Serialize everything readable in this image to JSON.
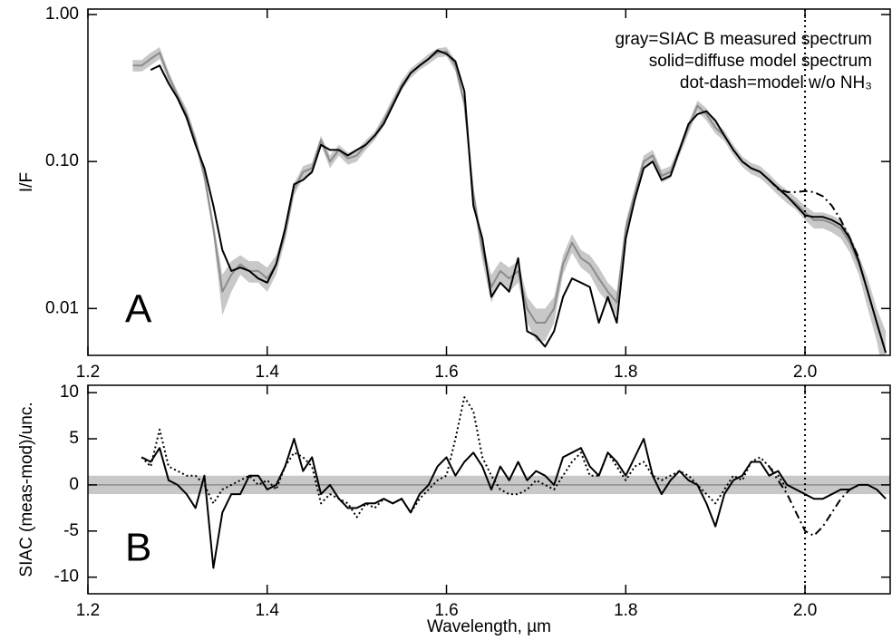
{
  "chart_data": [
    {
      "type": "line",
      "panel_label": "A",
      "ylabel": "I/F",
      "log_y": true,
      "legend": "upper right",
      "xlim": [
        1.2,
        2.095
      ],
      "xticks": [
        1.2,
        1.4,
        1.6,
        1.8,
        {
          "value": 2,
          "label": "2.0"
        }
      ],
      "ylim": [
        0.0048,
        1.09
      ],
      "yticks": [
        {
          "value": 1,
          "label": "1.00"
        },
        {
          "value": 0.1,
          "label": "0.10"
        },
        {
          "value": 0.01,
          "label": "0.01"
        }
      ],
      "vline": 2,
      "x": [
        1.25,
        1.26,
        1.27,
        1.28,
        1.29,
        1.3,
        1.31,
        1.32,
        1.33,
        1.34,
        1.35,
        1.36,
        1.37,
        1.38,
        1.39,
        1.4,
        1.41,
        1.42,
        1.43,
        1.44,
        1.45,
        1.46,
        1.47,
        1.48,
        1.49,
        1.5,
        1.51,
        1.52,
        1.53,
        1.54,
        1.55,
        1.56,
        1.57,
        1.58,
        1.59,
        1.6,
        1.61,
        1.62,
        1.63,
        1.64,
        1.65,
        1.66,
        1.67,
        1.68,
        1.69,
        1.7,
        1.71,
        1.72,
        1.73,
        1.74,
        1.75,
        1.76,
        1.77,
        1.78,
        1.79,
        1.8,
        1.81,
        1.82,
        1.83,
        1.84,
        1.85,
        1.86,
        1.87,
        1.88,
        1.89,
        1.9,
        1.91,
        1.92,
        1.93,
        1.94,
        1.95,
        1.96,
        1.97,
        1.98,
        1.99,
        2.0,
        2.01,
        2.02,
        2.03,
        2.04,
        2.05,
        2.06,
        2.07,
        2.08,
        2.09
      ],
      "series": [
        {
          "name": "gray=SIAC B measured spectrum",
          "color": "#8c8c8c",
          "error_color": "#c8c8c8",
          "style": "solid",
          "values": [
            0.45,
            0.45,
            0.5,
            0.55,
            0.38,
            0.28,
            0.21,
            0.14,
            0.08,
            0.035,
            0.013,
            0.017,
            0.02,
            0.018,
            0.018,
            0.016,
            0.02,
            0.032,
            0.065,
            0.085,
            0.09,
            0.14,
            0.1,
            0.12,
            0.105,
            0.11,
            0.13,
            0.15,
            0.19,
            0.25,
            0.33,
            0.4,
            0.45,
            0.5,
            0.55,
            0.56,
            0.45,
            0.25,
            0.06,
            0.025,
            0.014,
            0.018,
            0.016,
            0.018,
            0.01,
            0.008,
            0.008,
            0.01,
            0.02,
            0.028,
            0.022,
            0.02,
            0.016,
            0.013,
            0.011,
            0.035,
            0.06,
            0.1,
            0.11,
            0.08,
            0.085,
            0.12,
            0.17,
            0.24,
            0.21,
            0.17,
            0.15,
            0.12,
            0.1,
            0.09,
            0.085,
            0.075,
            0.065,
            0.058,
            0.052,
            0.045,
            0.04,
            0.04,
            0.038,
            0.035,
            0.028,
            0.02,
            0.013,
            0.008,
            0.005
          ],
          "errors": [
            0.04,
            0.04,
            0.05,
            0.05,
            0.03,
            0.02,
            0.02,
            0.01,
            0.008,
            0.004,
            0.004,
            0.004,
            0.003,
            0.003,
            0.003,
            0.003,
            0.003,
            0.003,
            0.006,
            0.008,
            0.008,
            0.01,
            0.01,
            0.01,
            0.01,
            0.01,
            0.01,
            0.01,
            0.015,
            0.02,
            0.025,
            0.03,
            0.03,
            0.04,
            0.04,
            0.04,
            0.04,
            0.02,
            0.008,
            0.004,
            0.003,
            0.003,
            0.003,
            0.003,
            0.002,
            0.002,
            0.002,
            0.002,
            0.003,
            0.004,
            0.003,
            0.003,
            0.003,
            0.002,
            0.002,
            0.004,
            0.006,
            0.01,
            0.01,
            0.008,
            0.008,
            0.01,
            0.015,
            0.02,
            0.02,
            0.015,
            0.012,
            0.01,
            0.008,
            0.008,
            0.008,
            0.007,
            0.006,
            0.006,
            0.005,
            0.005,
            0.005,
            0.005,
            0.005,
            0.005,
            0.004,
            0.003,
            0.003,
            0.002,
            0.002
          ]
        },
        {
          "name": "solid=diffuse model spectrum",
          "color": "#000000",
          "style": "solid",
          "values": [
            null,
            null,
            0.42,
            0.45,
            0.34,
            0.27,
            0.2,
            0.13,
            0.09,
            0.05,
            0.025,
            0.018,
            0.019,
            0.018,
            0.016,
            0.015,
            0.02,
            0.035,
            0.07,
            0.075,
            0.085,
            0.13,
            0.12,
            0.12,
            0.11,
            0.12,
            0.13,
            0.15,
            0.18,
            0.24,
            0.32,
            0.4,
            0.45,
            0.5,
            0.57,
            0.54,
            0.48,
            0.3,
            0.05,
            0.03,
            0.012,
            0.015,
            0.013,
            0.022,
            0.007,
            0.0065,
            0.0055,
            0.007,
            0.012,
            0.016,
            0.015,
            0.014,
            0.008,
            0.012,
            0.008,
            0.03,
            0.055,
            0.09,
            0.1,
            0.075,
            0.08,
            0.12,
            0.18,
            0.21,
            0.22,
            0.19,
            0.15,
            0.12,
            0.1,
            0.09,
            0.085,
            0.075,
            0.066,
            0.058,
            0.05,
            0.043,
            0.042,
            0.042,
            0.04,
            0.037,
            0.03,
            0.021,
            0.013,
            0.008,
            0.005
          ]
        },
        {
          "name": "dot-dash=model w/o NH₃",
          "color": "#000000",
          "style": "dashdot",
          "x": [
            1.96,
            1.97,
            1.98,
            1.99,
            2.0,
            2.01,
            2.02,
            2.03,
            2.04,
            2.05,
            2.06
          ],
          "values": [
            0.075,
            0.065,
            0.062,
            0.062,
            0.063,
            0.062,
            0.058,
            0.05,
            0.04,
            0.03,
            0.022
          ]
        }
      ]
    },
    {
      "type": "line",
      "panel_label": "B",
      "ylabel": "SIAC (meas-mod)/unc.",
      "xlabel": "Wavelength, µm",
      "log_y": false,
      "xlim": [
        1.2,
        2.095
      ],
      "xticks": [
        1.2,
        1.4,
        1.6,
        1.8,
        {
          "value": 2,
          "label": "2.0"
        }
      ],
      "ylim": [
        -11.8,
        10.8
      ],
      "yticks": [
        10,
        5,
        0,
        -5,
        -10
      ],
      "band": [
        -1,
        1
      ],
      "band_color": "#c8c8c8",
      "hline": 0,
      "vline": 2,
      "series": [
        {
          "color": "#000000",
          "style": "solid",
          "x": [
            1.26,
            1.27,
            1.28,
            1.29,
            1.3,
            1.31,
            1.32,
            1.33,
            1.34,
            1.35,
            1.36,
            1.37,
            1.38,
            1.39,
            1.4,
            1.41,
            1.42,
            1.43,
            1.44,
            1.45,
            1.46,
            1.47,
            1.48,
            1.49,
            1.5,
            1.51,
            1.52,
            1.53,
            1.54,
            1.55,
            1.56,
            1.57,
            1.58,
            1.59,
            1.6,
            1.61,
            1.62,
            1.63,
            1.64,
            1.65,
            1.66,
            1.67,
            1.68,
            1.69,
            1.7,
            1.71,
            1.72,
            1.73,
            1.74,
            1.75,
            1.76,
            1.77,
            1.78,
            1.79,
            1.8,
            1.81,
            1.82,
            1.83,
            1.84,
            1.85,
            1.86,
            1.87,
            1.88,
            1.89,
            1.9,
            1.91,
            1.92,
            1.93,
            1.94,
            1.95,
            1.96,
            1.97,
            1.98,
            1.99,
            2.0,
            2.01,
            2.02,
            2.03,
            2.04,
            2.05,
            2.06,
            2.07,
            2.08,
            2.09
          ],
          "values": [
            3,
            2.5,
            4,
            0.5,
            0,
            -1,
            -2.5,
            1,
            -9,
            -3,
            -1,
            -1,
            1,
            1,
            -0.5,
            0,
            2,
            5,
            1.5,
            3,
            -1,
            0,
            -1.5,
            -2.5,
            -2.5,
            -2,
            -2,
            -1.5,
            -2,
            -1.5,
            -3,
            -1,
            0,
            2,
            3,
            1,
            2.5,
            3.5,
            2,
            -0.5,
            2,
            0.5,
            2.5,
            0.5,
            1.5,
            1,
            0,
            3,
            3.5,
            4,
            2,
            1,
            3.5,
            2.5,
            1,
            3,
            5,
            1,
            -1,
            0.5,
            1.5,
            0.5,
            0,
            -2,
            -4.5,
            -1,
            0.5,
            1,
            2.5,
            2.5,
            1,
            1.5,
            0,
            -0.5,
            -1,
            -1.5,
            -1.5,
            -1,
            -0.5,
            -0.5,
            0,
            0,
            -0.5,
            -1.5
          ]
        },
        {
          "color": "#000000",
          "style": "dotted",
          "x": [
            1.26,
            1.27,
            1.28,
            1.29,
            1.3,
            1.31,
            1.32,
            1.33,
            1.34,
            1.35,
            1.36,
            1.37,
            1.38,
            1.39,
            1.4,
            1.41,
            1.42,
            1.43,
            1.44,
            1.45,
            1.46,
            1.47,
            1.48,
            1.49,
            1.5,
            1.51,
            1.52,
            1.53,
            1.54,
            1.55,
            1.56,
            1.57,
            1.58,
            1.59,
            1.6,
            1.61,
            1.62,
            1.63,
            1.64,
            1.65,
            1.66,
            1.67,
            1.68,
            1.69,
            1.7,
            1.71,
            1.72,
            1.73,
            1.74,
            1.75,
            1.76,
            1.77,
            1.78,
            1.79,
            1.8,
            1.81,
            1.82,
            1.83,
            1.84,
            1.85,
            1.86,
            1.87,
            1.88,
            1.89,
            1.9,
            1.91,
            1.92,
            1.93,
            1.94,
            1.95,
            1.96,
            1.97,
            1.98
          ],
          "values": [
            3,
            2,
            6,
            2,
            1.5,
            1,
            1,
            0,
            -2,
            -0.5,
            0,
            0.5,
            1,
            0,
            0.5,
            -0.5,
            2,
            3.5,
            3,
            2,
            -2,
            -1,
            -1.5,
            -2,
            -3.5,
            -2,
            -2.5,
            -1.5,
            -2,
            -1.5,
            -3,
            -1.5,
            -0.5,
            0.5,
            1,
            5,
            9.5,
            8,
            3,
            1,
            -0.5,
            -1,
            -1,
            -0.5,
            0.5,
            0,
            -0.5,
            1,
            2.5,
            3.5,
            1,
            1,
            3.5,
            2,
            0.5,
            2,
            2.5,
            1,
            0.5,
            1,
            1.5,
            1,
            0,
            -1,
            -2,
            -0.5,
            1,
            0.5,
            2.5,
            3,
            2,
            1,
            -0.5
          ]
        },
        {
          "color": "#000000",
          "style": "dashdot",
          "x": [
            1.96,
            1.97,
            1.98,
            1.99,
            2.0,
            2.01,
            2.02,
            2.03,
            2.04,
            2.05,
            2.06
          ],
          "values": [
            2,
            0.5,
            -1,
            -3,
            -5,
            -5.5,
            -4.5,
            -3,
            -1.5,
            -0.5,
            0
          ]
        }
      ]
    }
  ]
}
